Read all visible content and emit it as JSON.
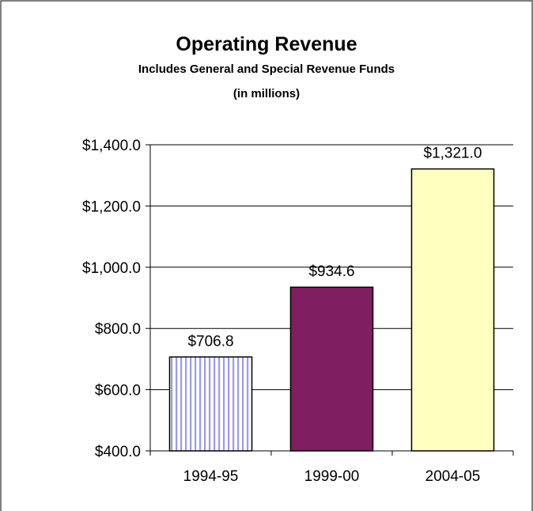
{
  "chart_data": {
    "type": "bar",
    "title": "Operating Revenue",
    "subtitle_lines": [
      "Includes General and Special Revenue Funds",
      "(in millions)"
    ],
    "categories": [
      "1994-95",
      "1999-00",
      "2004-05"
    ],
    "values": [
      706.8,
      934.6,
      1321.0
    ],
    "data_labels": [
      "$706.8",
      "$934.6",
      "$1,321.0"
    ],
    "ylim": [
      400,
      1400
    ],
    "yticks": [
      400,
      600,
      800,
      1000,
      1200,
      1400
    ],
    "ytick_labels": [
      "$400.0",
      "$600.0",
      "$800.0",
      "$1,000.0",
      "$1,200.0",
      "$1,400.0"
    ],
    "grid": true,
    "legend": "none",
    "bar_styles": [
      {
        "fill": "#ffffff",
        "pattern": "vertical-stripes",
        "stripe_color": "#9a9af0"
      },
      {
        "fill": "#7f1f5f",
        "pattern": "solid"
      },
      {
        "fill": "#ffffc0",
        "pattern": "solid"
      }
    ]
  }
}
